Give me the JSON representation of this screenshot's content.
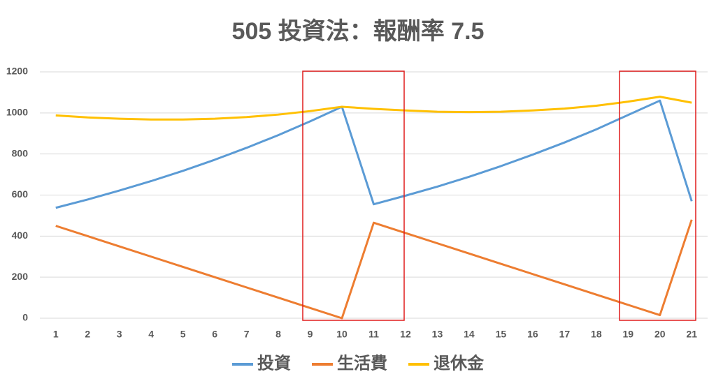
{
  "chart_data": {
    "type": "line",
    "title": "505 投資法：報酬率 7.5",
    "categories": [
      "1",
      "2",
      "3",
      "4",
      "5",
      "6",
      "7",
      "8",
      "9",
      "10",
      "11",
      "12",
      "13",
      "14",
      "15",
      "16",
      "17",
      "18",
      "19",
      "20",
      "21"
    ],
    "series": [
      {
        "name": "投資",
        "color": "#5b9bd5",
        "values": [
          538,
          578,
          622,
          668,
          718,
          772,
          830,
          892,
          959,
          1030,
          555,
          597,
          641,
          689,
          741,
          797,
          856,
          920,
          990,
          1060,
          570
        ]
      },
      {
        "name": "生活費",
        "color": "#ed7d31",
        "values": [
          450,
          400,
          350,
          300,
          250,
          200,
          150,
          100,
          50,
          0,
          465,
          415,
          365,
          315,
          265,
          215,
          165,
          115,
          65,
          15,
          480
        ]
      },
      {
        "name": "退休金",
        "color": "#ffc000",
        "values": [
          988,
          978,
          972,
          968,
          968,
          972,
          980,
          992,
          1009,
          1030,
          1020,
          1012,
          1006,
          1004,
          1006,
          1012,
          1021,
          1035,
          1055,
          1079,
          1050
        ]
      }
    ],
    "ylim": [
      0,
      1200
    ],
    "yticks": [
      0,
      200,
      400,
      600,
      800,
      1000,
      1200
    ],
    "grid": true,
    "legend": "bottom"
  }
}
